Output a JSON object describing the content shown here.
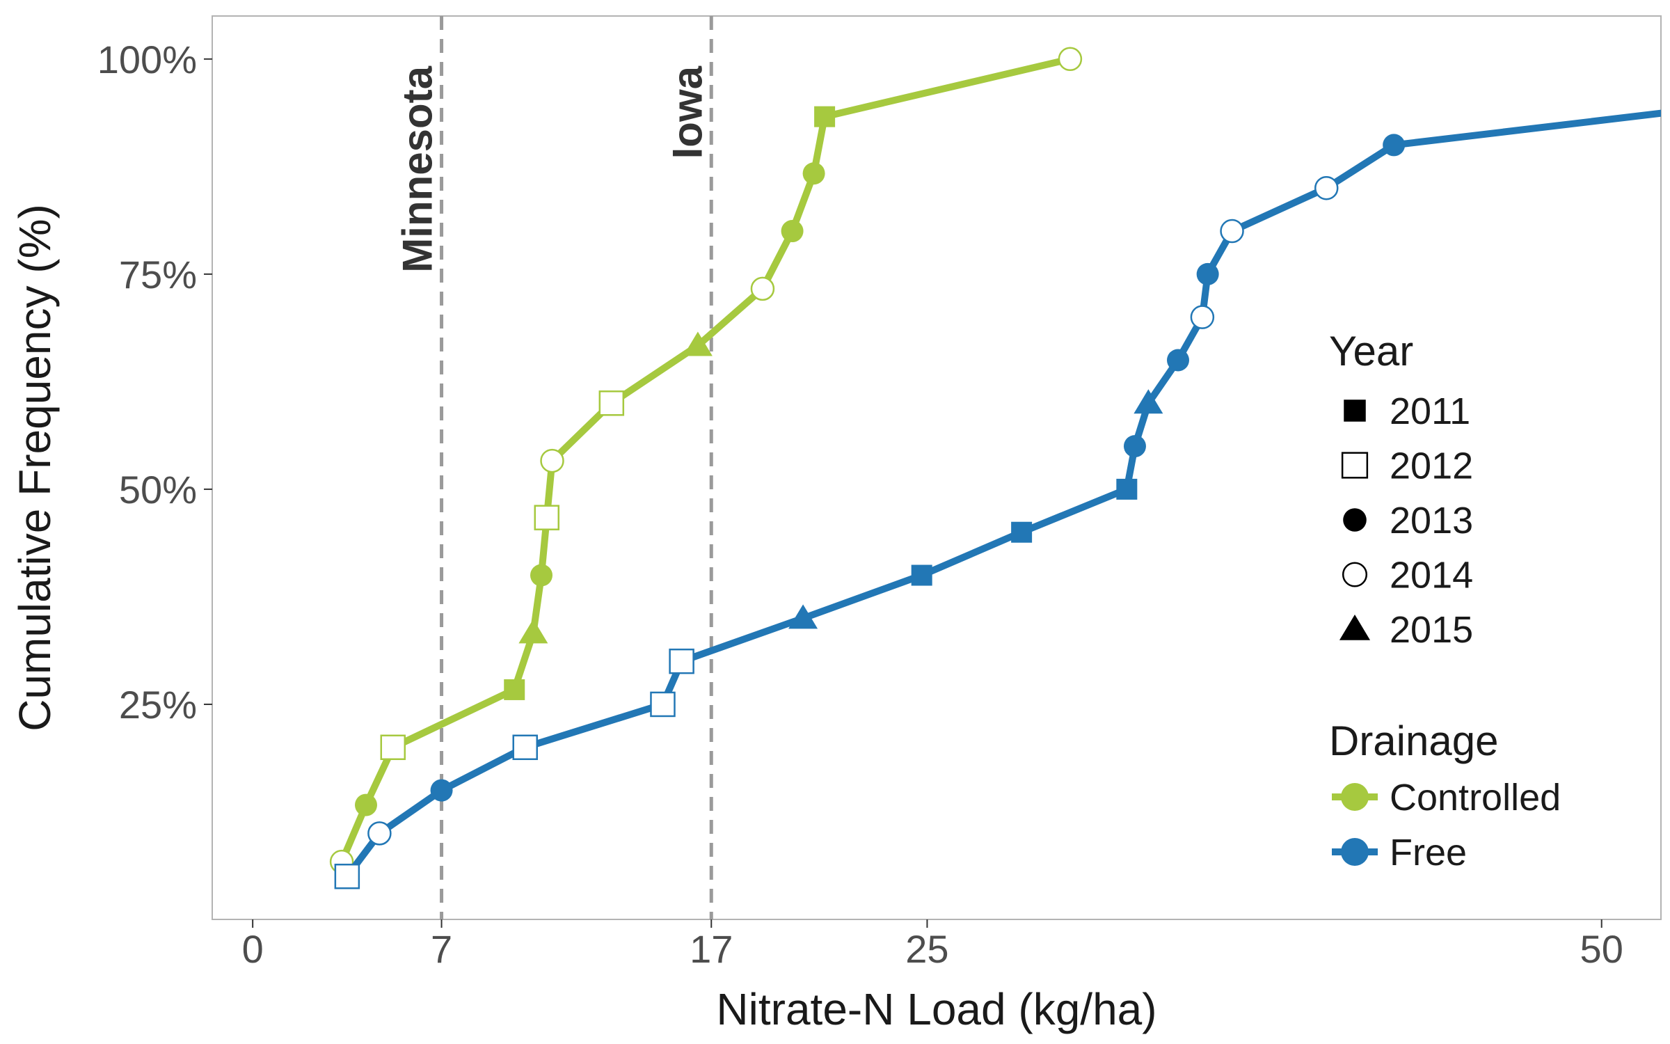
{
  "chart_data": {
    "type": "line",
    "xlabel": "Nitrate-N Load (kg/ha)",
    "ylabel": "Cumulative Frequency (%)",
    "xlim": [
      -1.5,
      52.2
    ],
    "ylim": [
      0,
      105
    ],
    "x_ticks": [
      {
        "value": 0,
        "label": "0"
      },
      {
        "value": 7,
        "label": "7"
      },
      {
        "value": 17,
        "label": "17"
      },
      {
        "value": 25,
        "label": "25"
      },
      {
        "value": 50,
        "label": "50"
      }
    ],
    "y_ticks": [
      {
        "value": 25,
        "label": "25%"
      },
      {
        "value": 50,
        "label": "50%"
      },
      {
        "value": 75,
        "label": "75%"
      },
      {
        "value": 100,
        "label": "100%"
      }
    ],
    "grid": false,
    "reference_lines": [
      {
        "x": 7,
        "label": "Minnesota"
      },
      {
        "x": 17,
        "label": "Iowa"
      }
    ],
    "legend": {
      "placement": "right",
      "year_title": "Year",
      "year_items": [
        {
          "label": "2011",
          "shape": "square-filled"
        },
        {
          "label": "2012",
          "shape": "square-open"
        },
        {
          "label": "2013",
          "shape": "circle-filled"
        },
        {
          "label": "2014",
          "shape": "circle-open"
        },
        {
          "label": "2015",
          "shape": "triangle-filled"
        }
      ],
      "drainage_title": "Drainage",
      "drainage_items": [
        {
          "label": "Controlled",
          "color": "#a6c93f"
        },
        {
          "label": "Free",
          "color": "#2277b5"
        }
      ]
    },
    "series": [
      {
        "name": "Controlled",
        "color": "#a6c93f",
        "points": [
          {
            "x": 3.3,
            "y": 6.7,
            "year": "2014"
          },
          {
            "x": 4.2,
            "y": 13.3,
            "year": "2013"
          },
          {
            "x": 5.2,
            "y": 20.0,
            "year": "2012"
          },
          {
            "x": 9.7,
            "y": 26.7,
            "year": "2011"
          },
          {
            "x": 10.4,
            "y": 33.3,
            "year": "2015"
          },
          {
            "x": 10.7,
            "y": 40.0,
            "year": "2013"
          },
          {
            "x": 10.9,
            "y": 46.7,
            "year": "2012"
          },
          {
            "x": 11.1,
            "y": 53.3,
            "year": "2014"
          },
          {
            "x": 13.3,
            "y": 60.0,
            "year": "2012"
          },
          {
            "x": 16.5,
            "y": 66.7,
            "year": "2015"
          },
          {
            "x": 18.9,
            "y": 73.3,
            "year": "2014"
          },
          {
            "x": 20.0,
            "y": 80.0,
            "year": "2013"
          },
          {
            "x": 20.8,
            "y": 86.7,
            "year": "2013"
          },
          {
            "x": 21.2,
            "y": 93.3,
            "year": "2011"
          },
          {
            "x": 30.3,
            "y": 100.0,
            "year": "2014"
          }
        ]
      },
      {
        "name": "Free",
        "color": "#2277b5",
        "points": [
          {
            "x": 3.5,
            "y": 5.0,
            "year": "2012"
          },
          {
            "x": 4.7,
            "y": 10.0,
            "year": "2014"
          },
          {
            "x": 7.0,
            "y": 15.0,
            "year": "2013"
          },
          {
            "x": 10.1,
            "y": 20.0,
            "year": "2012"
          },
          {
            "x": 15.2,
            "y": 25.0,
            "year": "2012"
          },
          {
            "x": 15.9,
            "y": 30.0,
            "year": "2012"
          },
          {
            "x": 20.4,
            "y": 35.0,
            "year": "2015"
          },
          {
            "x": 24.8,
            "y": 40.0,
            "year": "2011"
          },
          {
            "x": 28.5,
            "y": 45.0,
            "year": "2011"
          },
          {
            "x": 32.4,
            "y": 50.0,
            "year": "2011"
          },
          {
            "x": 32.7,
            "y": 55.0,
            "year": "2013"
          },
          {
            "x": 33.2,
            "y": 60.0,
            "year": "2015"
          },
          {
            "x": 34.3,
            "y": 65.0,
            "year": "2013"
          },
          {
            "x": 35.2,
            "y": 70.0,
            "year": "2014"
          },
          {
            "x": 35.4,
            "y": 75.0,
            "year": "2013"
          },
          {
            "x": 36.3,
            "y": 80.0,
            "year": "2014"
          },
          {
            "x": 39.8,
            "y": 85.0,
            "year": "2014"
          },
          {
            "x": 42.3,
            "y": 90.0,
            "year": "2013"
          },
          {
            "x": 53.0,
            "y": 94.0,
            "year": ""
          }
        ]
      }
    ]
  }
}
